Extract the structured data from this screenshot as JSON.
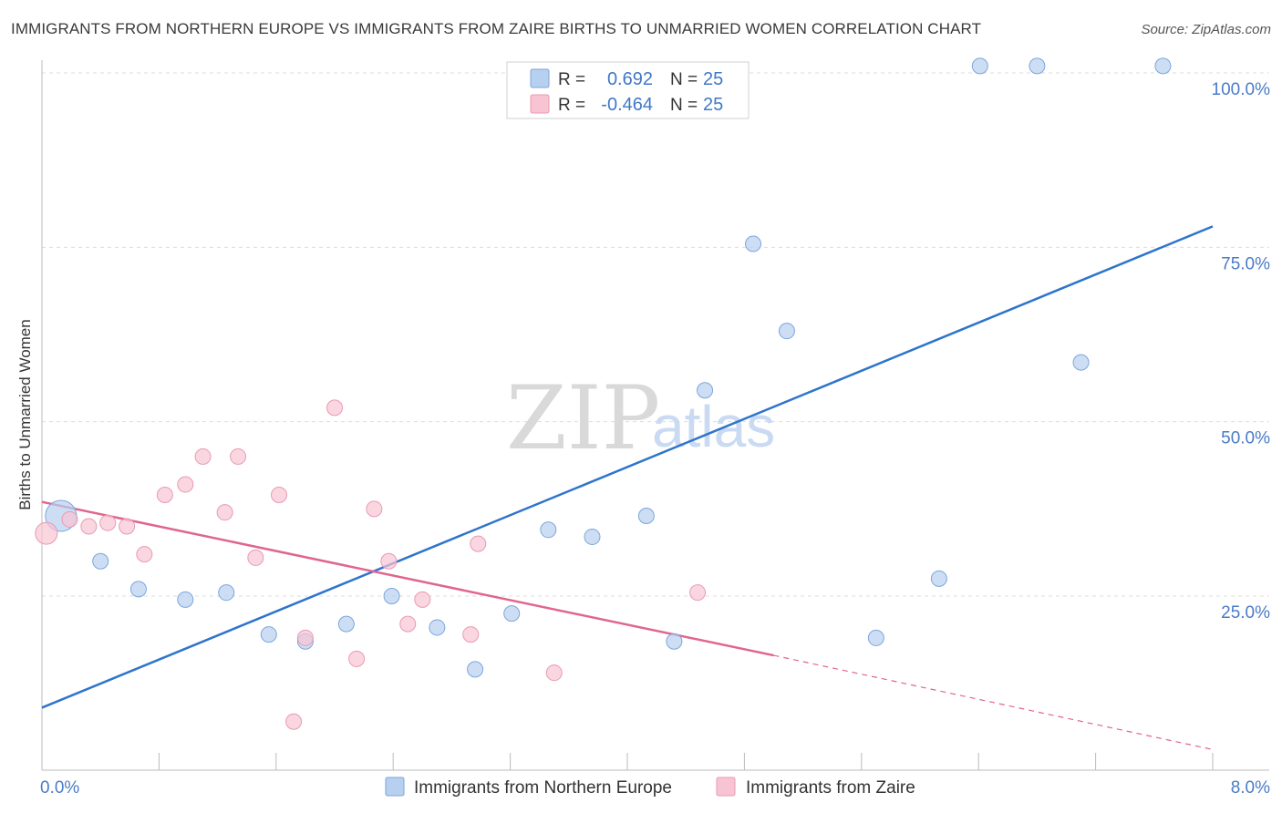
{
  "title": "IMMIGRANTS FROM NORTHERN EUROPE VS IMMIGRANTS FROM ZAIRE BIRTHS TO UNMARRIED WOMEN CORRELATION CHART",
  "source": "Source: ZipAtlas.com",
  "watermark": {
    "zip": "ZIP",
    "atlas": "atlas"
  },
  "legend": {
    "rows": [
      {
        "r_label": "R =",
        "r_value": "0.692",
        "n_label": "N =",
        "n_value": "25"
      },
      {
        "r_label": "R =",
        "r_value": "-0.464",
        "n_label": "N =",
        "n_value": "25"
      }
    ]
  },
  "colors": {
    "blue_fill": "#b8d0f0",
    "blue_stroke": "#7aa6dd",
    "blue_line": "#2f74cc",
    "pink_fill": "#f8c4d4",
    "pink_stroke": "#e99ab3",
    "pink_line": "#e0658f",
    "grid": "#dddddd",
    "axis_text": "#4a7cc7"
  },
  "chart_data": {
    "type": "scatter",
    "title": "IMMIGRANTS FROM NORTHERN EUROPE VS IMMIGRANTS FROM ZAIRE BIRTHS TO UNMARRIED WOMEN CORRELATION CHART",
    "xlabel": "",
    "ylabel": "Births to Unmarried Women",
    "xlim": [
      0,
      8
    ],
    "ylim": [
      0,
      102
    ],
    "x_tick_labels": [
      "0.0%",
      "8.0%"
    ],
    "y_ticks": [
      25,
      50,
      75,
      100
    ],
    "y_tick_labels": [
      "25.0%",
      "50.0%",
      "75.0%",
      "100.0%"
    ],
    "series": [
      {
        "name": "Immigrants from Northern Europe",
        "color": "blue",
        "r": 0.692,
        "n": 25,
        "points": [
          {
            "x": 0.13,
            "y": 36.5,
            "big": true
          },
          {
            "x": 0.4,
            "y": 30.0
          },
          {
            "x": 0.66,
            "y": 26.0
          },
          {
            "x": 0.98,
            "y": 24.5
          },
          {
            "x": 1.26,
            "y": 25.5
          },
          {
            "x": 1.55,
            "y": 19.5
          },
          {
            "x": 1.8,
            "y": 18.5
          },
          {
            "x": 2.08,
            "y": 21.0
          },
          {
            "x": 2.39,
            "y": 25.0
          },
          {
            "x": 2.7,
            "y": 20.5
          },
          {
            "x": 2.96,
            "y": 14.5
          },
          {
            "x": 3.21,
            "y": 22.5
          },
          {
            "x": 3.46,
            "y": 34.5
          },
          {
            "x": 3.76,
            "y": 33.5
          },
          {
            "x": 4.13,
            "y": 36.5
          },
          {
            "x": 4.32,
            "y": 18.5
          },
          {
            "x": 4.53,
            "y": 54.5
          },
          {
            "x": 4.86,
            "y": 75.5
          },
          {
            "x": 5.09,
            "y": 63.0
          },
          {
            "x": 5.7,
            "y": 19.0
          },
          {
            "x": 6.13,
            "y": 27.5
          },
          {
            "x": 6.41,
            "y": 101.0
          },
          {
            "x": 6.8,
            "y": 101.0
          },
          {
            "x": 7.1,
            "y": 58.5
          },
          {
            "x": 7.66,
            "y": 101.0
          }
        ],
        "trend": {
          "x": [
            0.0,
            8.0
          ],
          "y": [
            9.0,
            78.0
          ],
          "style": "solid"
        }
      },
      {
        "name": "Immigrants from Zaire",
        "color": "pink",
        "r": -0.464,
        "n": 25,
        "points": [
          {
            "x": 0.03,
            "y": 34.0,
            "big": true
          },
          {
            "x": 0.19,
            "y": 36.0
          },
          {
            "x": 0.32,
            "y": 35.0
          },
          {
            "x": 0.45,
            "y": 35.5
          },
          {
            "x": 0.58,
            "y": 35.0
          },
          {
            "x": 0.7,
            "y": 31.0
          },
          {
            "x": 0.84,
            "y": 39.5
          },
          {
            "x": 0.98,
            "y": 41.0
          },
          {
            "x": 1.1,
            "y": 45.0
          },
          {
            "x": 1.25,
            "y": 37.0
          },
          {
            "x": 1.34,
            "y": 45.0
          },
          {
            "x": 1.46,
            "y": 30.5
          },
          {
            "x": 1.62,
            "y": 39.5
          },
          {
            "x": 1.72,
            "y": 7.0
          },
          {
            "x": 1.8,
            "y": 19.0
          },
          {
            "x": 2.0,
            "y": 52.0
          },
          {
            "x": 2.15,
            "y": 16.0
          },
          {
            "x": 2.27,
            "y": 37.5
          },
          {
            "x": 2.37,
            "y": 30.0
          },
          {
            "x": 2.5,
            "y": 21.0
          },
          {
            "x": 2.6,
            "y": 24.5
          },
          {
            "x": 2.93,
            "y": 19.5
          },
          {
            "x": 2.98,
            "y": 32.5
          },
          {
            "x": 3.5,
            "y": 14.0
          },
          {
            "x": 4.48,
            "y": 25.5
          }
        ],
        "trend": {
          "x": [
            0.0,
            5.0
          ],
          "y": [
            38.5,
            16.5
          ],
          "style": "solid"
        },
        "trend_extension": {
          "x": [
            5.0,
            8.0
          ],
          "y": [
            16.5,
            3.0
          ],
          "style": "dashed"
        }
      }
    ],
    "legend": [
      "Immigrants from Northern Europe",
      "Immigrants from Zaire"
    ]
  }
}
